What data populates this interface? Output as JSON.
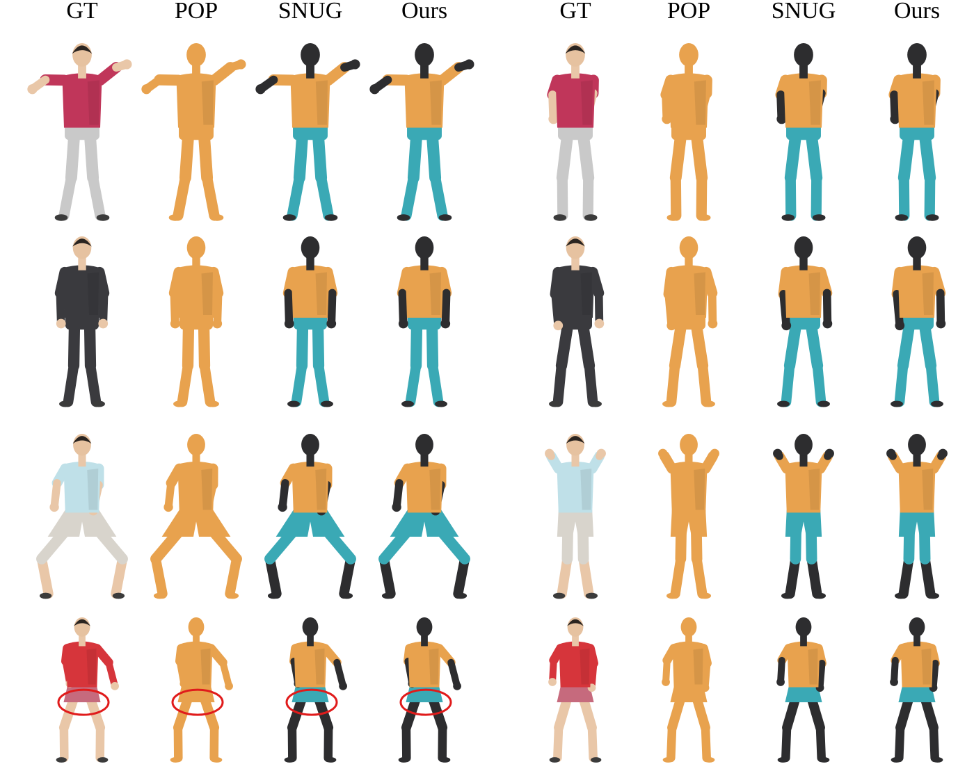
{
  "column_headers": [
    {
      "group": "left",
      "labels": [
        "GT",
        "POP",
        "SNUG",
        "Ours"
      ]
    },
    {
      "group": "right",
      "labels": [
        "GT",
        "POP",
        "SNUG",
        "Ours"
      ]
    }
  ],
  "colors": {
    "mesh_orange": "#e8a24e",
    "mesh_orange_dark": "#c98633",
    "body_black": "#2d2d2f",
    "pants_cyan": "#3aa9b5",
    "highlight_red": "#e01b1b"
  },
  "rows": [
    {
      "pose": "arms-out-tilted",
      "bottom": "pants",
      "gt_top": "#c0365a",
      "gt_bottom": "#c9c9c9"
    },
    {
      "pose": "a-pose",
      "bottom": "pants",
      "gt_top": "#3a3a3e",
      "gt_bottom": "#3a3a3e"
    },
    {
      "pose": "squat",
      "bottom": "shorts",
      "gt_top": "#bfe0e8",
      "gt_bottom": "#d8d4cc"
    },
    {
      "pose": "bent-dance",
      "bottom": "skirt",
      "gt_top": "#d6353b",
      "gt_bottom": "#c66a7d"
    }
  ],
  "right_rows": [
    {
      "pose": "walk-arm-bent",
      "bottom": "pants",
      "gt_top": "#c0365a",
      "gt_bottom": "#c9c9c9"
    },
    {
      "pose": "lean",
      "bottom": "pants",
      "gt_top": "#3a3a3e",
      "gt_bottom": "#3a3a3e"
    },
    {
      "pose": "arms-up",
      "bottom": "shorts",
      "gt_top": "#bfe0e8",
      "gt_bottom": "#d8d4cc"
    },
    {
      "pose": "step",
      "bottom": "skirt",
      "gt_top": "#d6353b",
      "gt_bottom": "#c66a7d"
    }
  ],
  "highlighted_row": 3,
  "highlighted_group": "left"
}
